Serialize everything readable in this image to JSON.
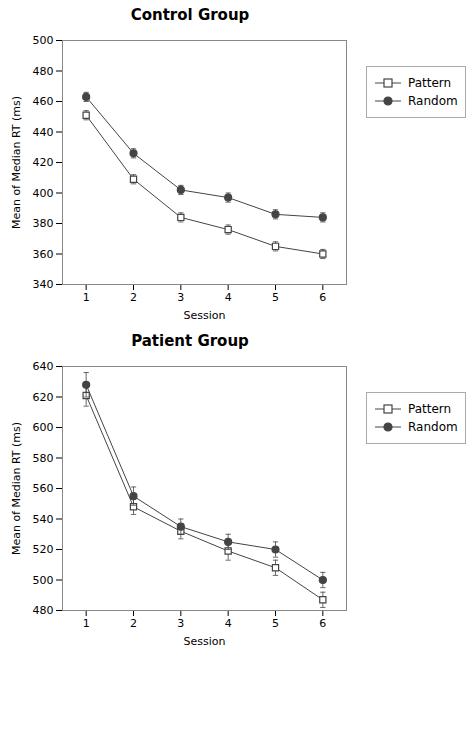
{
  "chart_data": [
    {
      "type": "line",
      "title": "Control Group",
      "xlabel": "Session",
      "ylabel": "Mean of Median RT (ms)",
      "x": [
        1,
        2,
        3,
        4,
        5,
        6
      ],
      "xlim": [
        0.5,
        6.5
      ],
      "xticks": [
        1,
        2,
        3,
        4,
        5,
        6
      ],
      "ylim": [
        340,
        500
      ],
      "yticks": [
        340,
        360,
        380,
        400,
        420,
        440,
        460,
        480,
        500
      ],
      "grid": false,
      "legend": "right",
      "series": [
        {
          "name": "Pattern",
          "color": "#444444",
          "marker": "open_square",
          "values": [
            451,
            409,
            384,
            376,
            365,
            360
          ],
          "errors": [
            3,
            3,
            3,
            3,
            3,
            3
          ]
        },
        {
          "name": "Random",
          "color": "#444444",
          "marker": "circle",
          "values": [
            463,
            426,
            402,
            397,
            386,
            384
          ],
          "errors": [
            3,
            3,
            3,
            3,
            3,
            3
          ]
        }
      ]
    },
    {
      "type": "line",
      "title": "Patient Group",
      "xlabel": "Session",
      "ylabel": "Mean of Median RT (ms)",
      "x": [
        1,
        2,
        3,
        4,
        5,
        6
      ],
      "xlim": [
        0.5,
        6.5
      ],
      "xticks": [
        1,
        2,
        3,
        4,
        5,
        6
      ],
      "ylim": [
        480,
        640
      ],
      "yticks": [
        480,
        500,
        520,
        540,
        560,
        580,
        600,
        620,
        640
      ],
      "grid": false,
      "legend": "right",
      "series": [
        {
          "name": "Pattern",
          "color": "#444444",
          "marker": "open_square",
          "values": [
            621,
            548,
            532,
            519,
            508,
            487
          ],
          "errors": [
            7,
            5,
            5,
            6,
            5,
            5
          ]
        },
        {
          "name": "Random",
          "color": "#444444",
          "marker": "circle",
          "values": [
            628,
            555,
            535,
            525,
            520,
            500
          ],
          "errors": [
            8,
            6,
            5,
            5,
            5,
            5
          ]
        }
      ]
    }
  ]
}
